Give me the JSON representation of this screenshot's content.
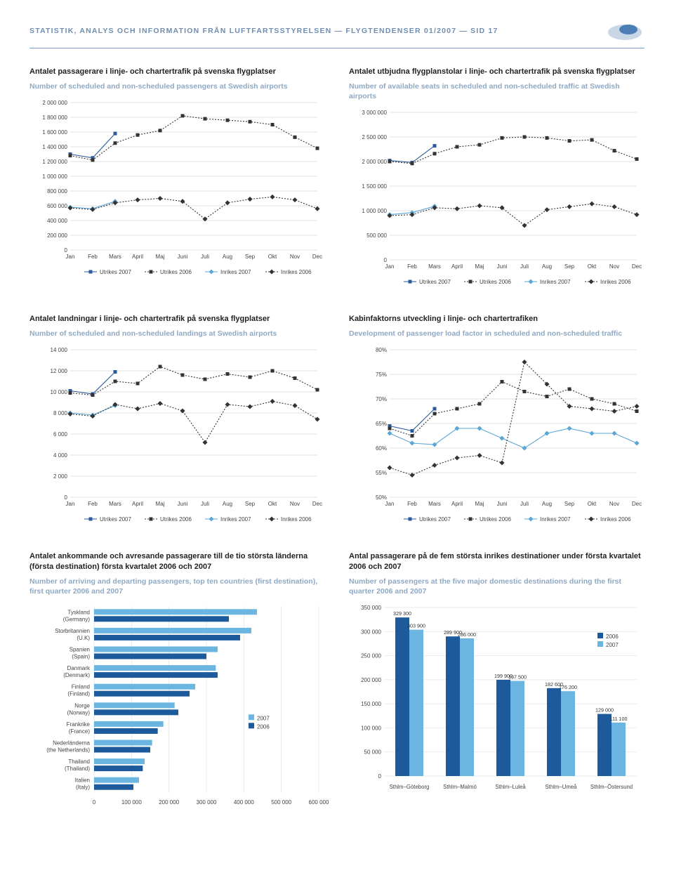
{
  "header": "STATISTIK, ANALYS OCH INFORMATION FRÅN LUFTFARTSSTYRELSEN — FLYGTENDENSER 01/2007 — SID 17",
  "months": [
    "Jan",
    "Feb",
    "Mars",
    "April",
    "Maj",
    "Juni",
    "Juli",
    "Aug",
    "Sep",
    "Okt",
    "Nov",
    "Dec"
  ],
  "legend_series": [
    "Utrikes 2007",
    "Utrikes 2006",
    "Inrikes 2007",
    "Inrikes 2006"
  ],
  "series_colors": {
    "u07": "#2a5a9c",
    "u06": "#333333",
    "i07": "#5aa6d6",
    "i06": "#333333"
  },
  "series_dash": {
    "u07": "",
    "u06": "2,2",
    "i07": "",
    "i06": "2,2"
  },
  "marker_style": {
    "u07": "square",
    "u06": "square",
    "i07": "diamond",
    "i06": "diamond"
  },
  "c1": {
    "title": "Antalet passagerare i linje- och chartertrafik på svenska flygplatser",
    "sub": "Number of scheduled and non-scheduled passengers at Swedish airports",
    "ymax": 2000000,
    "ystep": 200000,
    "yticks": [
      "2 000 000",
      "1 800 000",
      "1 600 000",
      "1 400 000",
      "1 200 000",
      "1 000 000",
      "800 000",
      "600 000",
      "400 000",
      "200 000",
      "0"
    ],
    "u07": [
      1300000,
      1250000,
      1580000
    ],
    "u06": [
      1280000,
      1220000,
      1450000,
      1560000,
      1620000,
      1820000,
      1780000,
      1760000,
      1740000,
      1700000,
      1530000,
      1380000
    ],
    "i07": [
      580000,
      560000,
      660000
    ],
    "i06": [
      570000,
      550000,
      640000,
      680000,
      700000,
      660000,
      420000,
      640000,
      690000,
      720000,
      680000,
      560000
    ]
  },
  "c2": {
    "title": "Antalet utbjudna flygplanstolar i linje- och chartertrafik på svenska flygplatser",
    "sub": "Number of available seats in scheduled and non-scheduled traffic at Swedish airports",
    "ymax": 3000000,
    "ystep": 500000,
    "yticks": [
      "3 000 000",
      "2 500 000",
      "2 000 000",
      "1 500 000",
      "1 000 000",
      "500 000",
      "0"
    ],
    "u07": [
      2020000,
      1980000,
      2320000
    ],
    "u06": [
      2000000,
      1960000,
      2160000,
      2300000,
      2340000,
      2480000,
      2500000,
      2480000,
      2420000,
      2440000,
      2220000,
      2050000
    ],
    "i07": [
      920000,
      960000,
      1090000
    ],
    "i06": [
      900000,
      920000,
      1060000,
      1040000,
      1100000,
      1060000,
      700000,
      1020000,
      1080000,
      1140000,
      1080000,
      920000
    ]
  },
  "c3": {
    "title": "Antalet landningar i linje- och chartertrafik på svenska flygplatser",
    "sub": "Number of scheduled and non-scheduled landings at Swedish airports",
    "ymax": 14000,
    "ystep": 2000,
    "yticks": [
      "14 000",
      "12 000",
      "10 000",
      "8 000",
      "6 000",
      "4 000",
      "2 000",
      "0"
    ],
    "u07": [
      10100,
      9800,
      11900
    ],
    "u06": [
      9900,
      9700,
      11000,
      10800,
      12400,
      11600,
      11200,
      11700,
      11400,
      12000,
      11300,
      10200
    ],
    "i07": [
      8000,
      7800,
      8700
    ],
    "i06": [
      7900,
      7700,
      8800,
      8400,
      8900,
      8200,
      5200,
      8800,
      8600,
      9100,
      8700,
      7400
    ]
  },
  "c4": {
    "title": "Kabinfaktorns utveckling i linje- och chartertrafiken",
    "sub": "Development of passenger load factor in scheduled and non-scheduled traffic",
    "ymin": 50,
    "ymax": 80,
    "ystep": 5,
    "yticks": [
      "80%",
      "75%",
      "70%",
      "65%",
      "60%",
      "55%",
      "50%"
    ],
    "u07": [
      64.5,
      63.5,
      68.0
    ],
    "u06": [
      64.0,
      62.5,
      67.0,
      68.0,
      69.0,
      73.5,
      71.5,
      70.5,
      72.0,
      70.0,
      69.0,
      67.5
    ],
    "i07": [
      63.0,
      61.0,
      60.7,
      64.0,
      64.0,
      62.0,
      60.0,
      63.0,
      64.0,
      63.0,
      63.0,
      61.0
    ],
    "i06": [
      56.0,
      54.5,
      56.5,
      58.0,
      58.5,
      57.0,
      77.5,
      73.0,
      68.5,
      68.0,
      67.5,
      68.5
    ]
  },
  "c5": {
    "title": "Antalet ankommande och avresande passagerare till de tio största länderna (första destination) första kvartalet 2006 och 2007",
    "sub": "Number of arriving and departing passengers, top ten countries (first destination), first quarter 2006 and 2007",
    "xmax": 600000,
    "xstep": 100000,
    "xticks": [
      "0",
      "100 000",
      "200 000",
      "300 000",
      "400 000",
      "500 000",
      "600 000"
    ],
    "categories": [
      {
        "l1": "Tyskland",
        "l2": "(Germany)",
        "v07": 435000,
        "v06": 360000
      },
      {
        "l1": "Storbritannien",
        "l2": "(U.K)",
        "v07": 420000,
        "v06": 390000
      },
      {
        "l1": "Spanien",
        "l2": "(Spain)",
        "v07": 330000,
        "v06": 300000
      },
      {
        "l1": "Danmark",
        "l2": "(Denmark)",
        "v07": 325000,
        "v06": 330000
      },
      {
        "l1": "Finland",
        "l2": "(Finland)",
        "v07": 270000,
        "v06": 255000
      },
      {
        "l1": "Norge",
        "l2": "(Norway)",
        "v07": 215000,
        "v06": 225000
      },
      {
        "l1": "Frankrike",
        "l2": "(France)",
        "v07": 185000,
        "v06": 170000
      },
      {
        "l1": "Nederländerna",
        "l2": "(the Netherlands)",
        "v07": 155000,
        "v06": 150000
      },
      {
        "l1": "Thailand",
        "l2": "(Thailand)",
        "v07": 135000,
        "v06": 130000
      },
      {
        "l1": "Italien",
        "l2": "(Italy)",
        "v07": 120000,
        "v06": 105000
      }
    ],
    "legend": [
      "2007",
      "2006"
    ],
    "colors": {
      "2007": "#6bb6e0",
      "2006": "#1d5a9c"
    }
  },
  "c6": {
    "title": "Antal passagerare på de fem största inrikes destinationer under första kvartalet 2006 och 2007",
    "sub": "Number of passengers at the five major domestic destinations during the first quarter 2006 and 2007",
    "ymax": 350000,
    "ystep": 50000,
    "yticks": [
      "350 000",
      "300 000",
      "250 000",
      "200 000",
      "150 000",
      "100 000",
      "50 000",
      "0"
    ],
    "categories": [
      {
        "name": "Sthlm–Göteborg",
        "v06": 329300,
        "v07": 303900,
        "t06": "329 300",
        "t07": "303 900"
      },
      {
        "name": "Sthlm–Malmö",
        "v06": 289900,
        "v07": 286000,
        "t06": "289 900",
        "t07": "286 000"
      },
      {
        "name": "Sthlm–Luleå",
        "v06": 199900,
        "v07": 197500,
        "t06": "199 900",
        "t07": "197 500"
      },
      {
        "name": "Sthlm–Umeå",
        "v06": 182600,
        "v07": 176200,
        "t06": "182 600",
        "t07": "176 200"
      },
      {
        "name": "Sthlm–Östersund",
        "v06": 129000,
        "v07": 111100,
        "t06": "129 000",
        "t07": "111 100"
      }
    ],
    "legend": [
      "2006",
      "2007"
    ],
    "colors": {
      "2006": "#1d5a9c",
      "2007": "#6bb6e0"
    }
  }
}
